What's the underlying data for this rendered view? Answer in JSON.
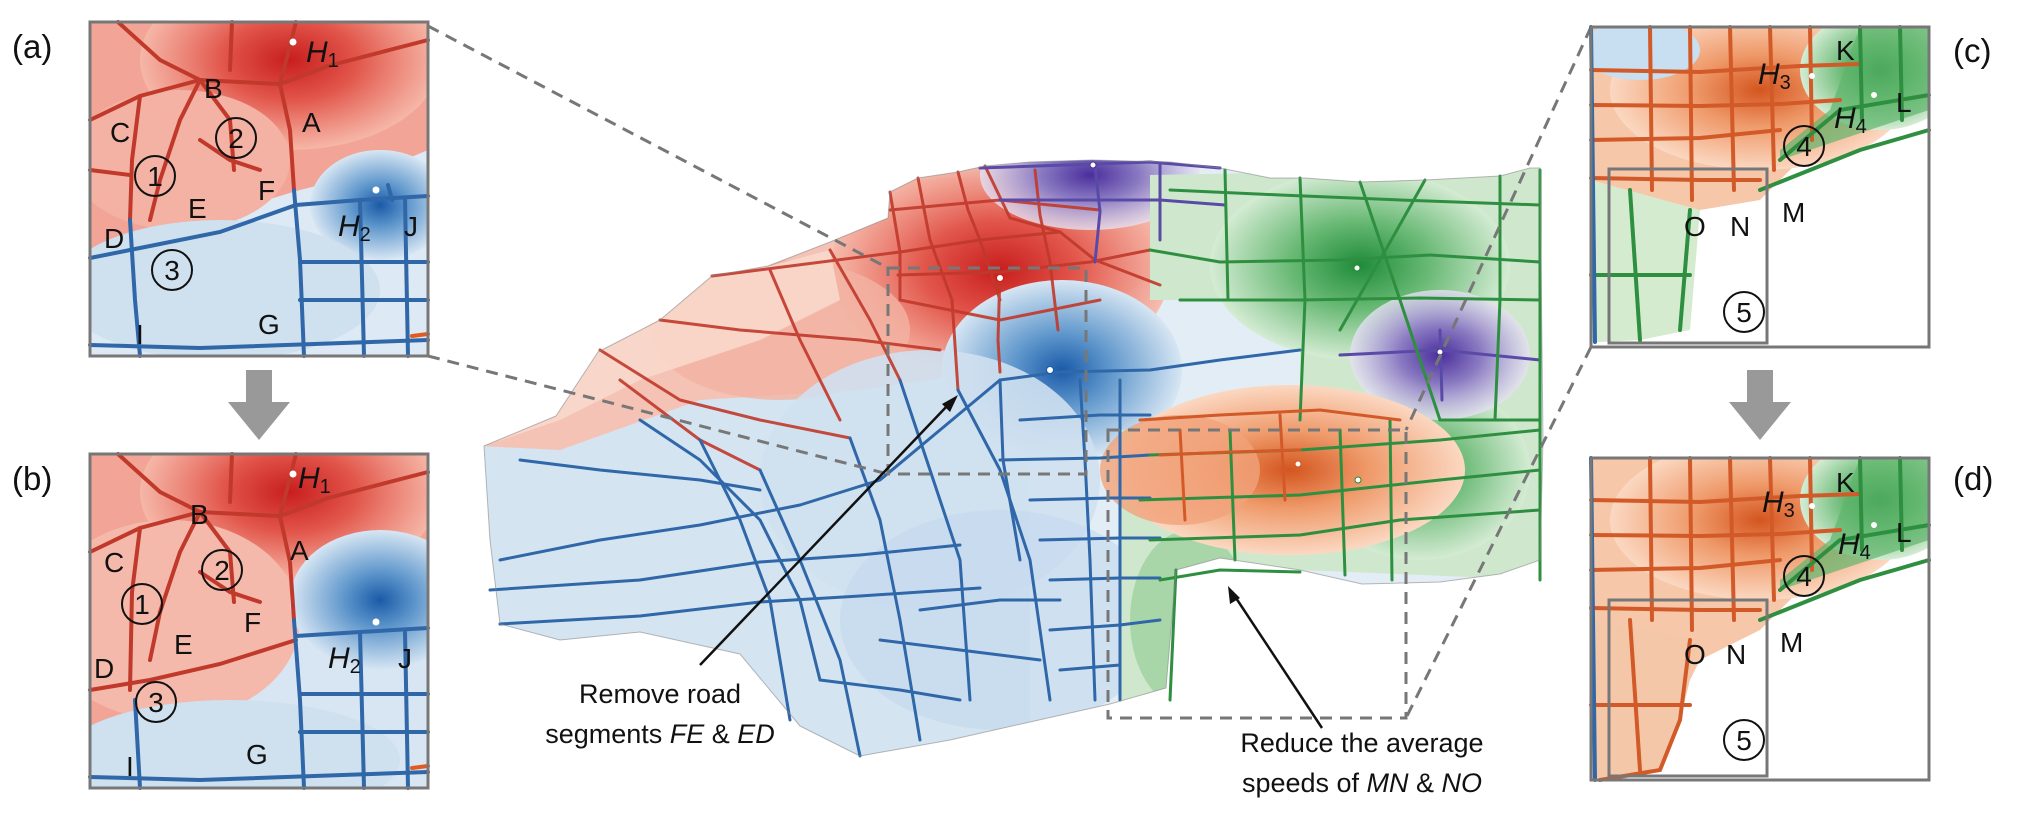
{
  "panels": {
    "a": {
      "tag": "(a)",
      "hub": "H",
      "hub_sub": "1",
      "hub2": "H",
      "hub2_sub": "2",
      "nodes": [
        "A",
        "B",
        "C",
        "D",
        "E",
        "F",
        "G",
        "I",
        "J"
      ],
      "regions": [
        "1",
        "2",
        "3"
      ]
    },
    "b": {
      "tag": "(b)",
      "hub": "H",
      "hub_sub": "1",
      "hub2": "H",
      "hub2_sub": "2",
      "nodes": [
        "A",
        "B",
        "C",
        "D",
        "E",
        "F",
        "G",
        "I",
        "J"
      ],
      "regions": [
        "1",
        "2",
        "3"
      ]
    },
    "c": {
      "tag": "(c)",
      "hub3": "H",
      "hub3_sub": "3",
      "hub4": "H",
      "hub4_sub": "4",
      "nodes": [
        "K",
        "L",
        "M",
        "N",
        "O"
      ],
      "regions": [
        "4",
        "5"
      ]
    },
    "d": {
      "tag": "(d)",
      "hub3": "H",
      "hub3_sub": "3",
      "hub4": "H",
      "hub4_sub": "4",
      "nodes": [
        "K",
        "L",
        "M",
        "N",
        "O"
      ],
      "regions": [
        "4",
        "5"
      ]
    }
  },
  "annotations": {
    "left": {
      "line1": "Remove road",
      "line2_pre": "segments ",
      "seg1": "FE",
      "amp": " & ",
      "seg2": "ED"
    },
    "right": {
      "line1": "Reduce the average",
      "line2_pre": "speeds of ",
      "seg1": "MN",
      "amp": " & ",
      "seg2": "NO"
    }
  },
  "colors": {
    "red": "#d8443a",
    "blue": "#2f6fb0",
    "green": "#3a9a4a",
    "purple": "#5b4aa8",
    "orange": "#e8743a",
    "frame": "#777777",
    "arrow": "#999999"
  }
}
